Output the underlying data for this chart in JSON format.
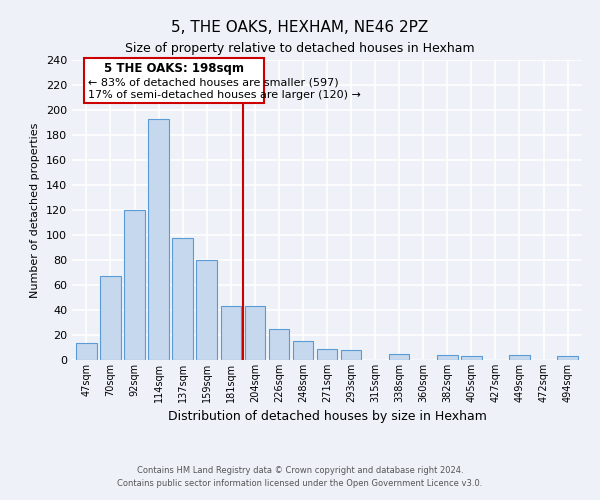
{
  "title": "5, THE OAKS, HEXHAM, NE46 2PZ",
  "subtitle": "Size of property relative to detached houses in Hexham",
  "xlabel": "Distribution of detached houses by size in Hexham",
  "ylabel": "Number of detached properties",
  "bar_labels": [
    "47sqm",
    "70sqm",
    "92sqm",
    "114sqm",
    "137sqm",
    "159sqm",
    "181sqm",
    "204sqm",
    "226sqm",
    "248sqm",
    "271sqm",
    "293sqm",
    "315sqm",
    "338sqm",
    "360sqm",
    "382sqm",
    "405sqm",
    "427sqm",
    "449sqm",
    "472sqm",
    "494sqm"
  ],
  "bar_values": [
    14,
    67,
    120,
    193,
    98,
    80,
    43,
    43,
    25,
    15,
    9,
    8,
    0,
    5,
    0,
    4,
    3,
    0,
    4,
    0,
    3
  ],
  "bar_color": "#c5d8ed",
  "bar_edge_color": "#5b9bd5",
  "vline_color": "#cc0000",
  "annotation_title": "5 THE OAKS: 198sqm",
  "annotation_line1": "← 83% of detached houses are smaller (597)",
  "annotation_line2": "17% of semi-detached houses are larger (120) →",
  "annotation_box_color": "#ffffff",
  "annotation_box_edge": "#cc0000",
  "ylim": [
    0,
    240
  ],
  "yticks": [
    0,
    20,
    40,
    60,
    80,
    100,
    120,
    140,
    160,
    180,
    200,
    220,
    240
  ],
  "footer1": "Contains HM Land Registry data © Crown copyright and database right 2024.",
  "footer2": "Contains public sector information licensed under the Open Government Licence v3.0.",
  "bg_color": "#eef2f8"
}
